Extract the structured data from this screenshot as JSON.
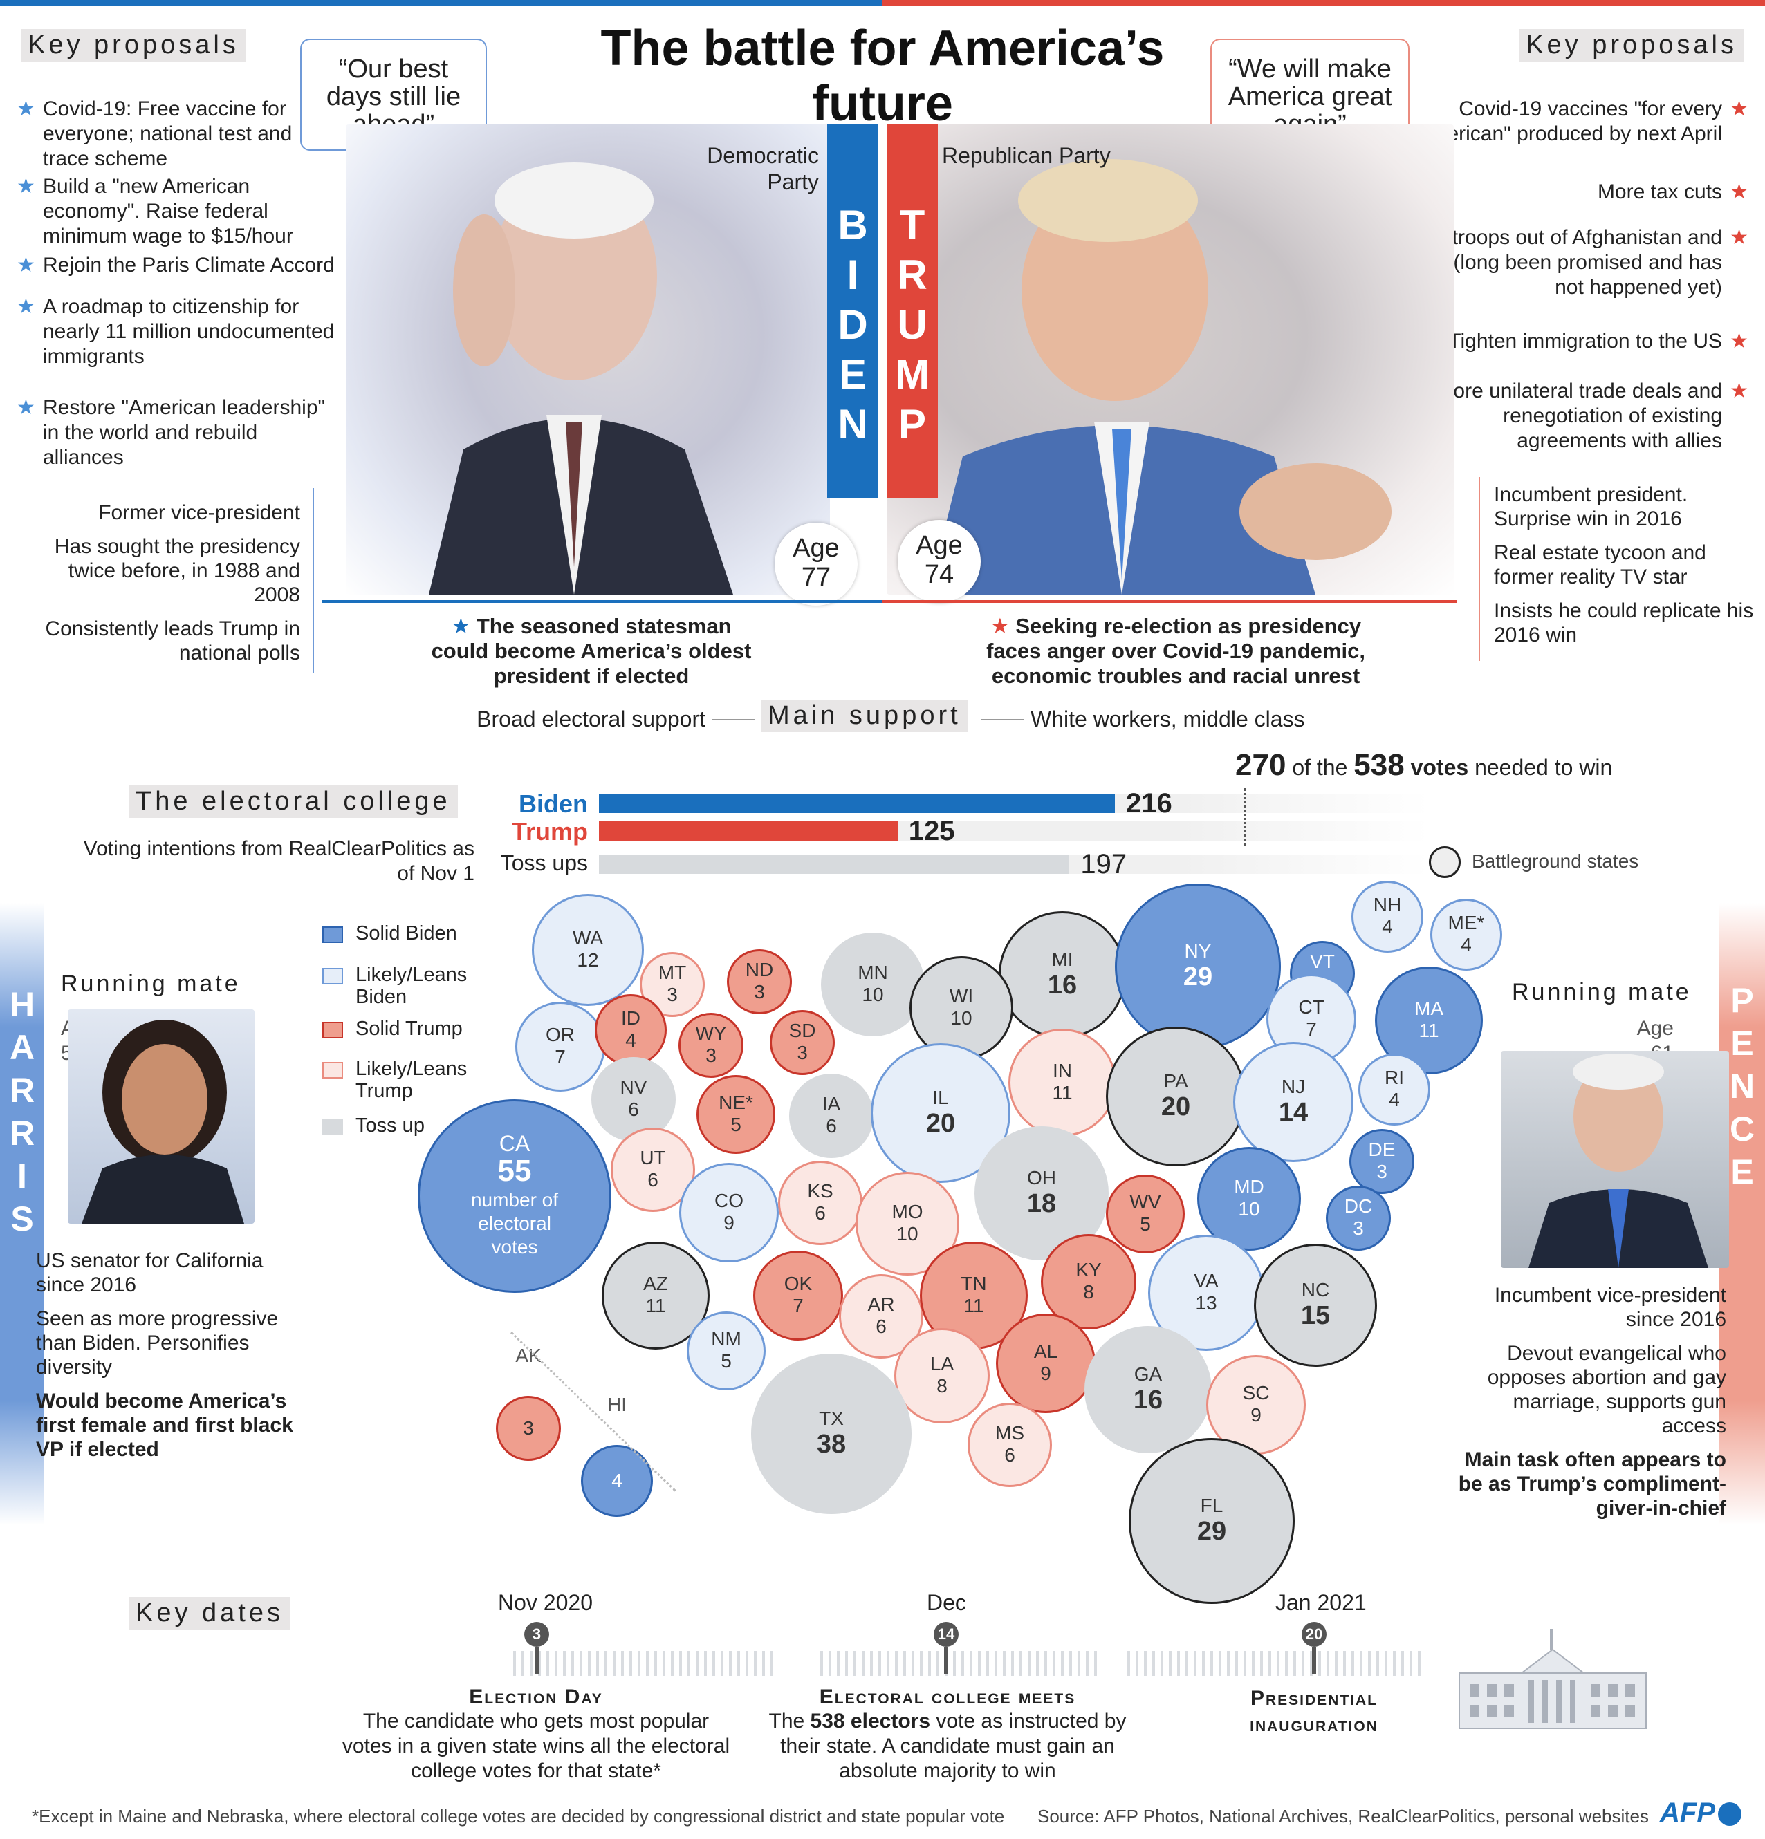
{
  "title": "The battle for America’s future",
  "biden": {
    "proposals_tag": "Key proposals",
    "proposals": [
      "Covid-19: Free vaccine for everyone; national test and trace scheme",
      "Build a \"new American economy\". Raise federal minimum wage to $15/hour",
      "Rejoin the Paris Climate Accord",
      "A roadmap to citizenship for nearly 11 million undocumented immigrants",
      "Restore \"American leadership\" in the world and rebuild alliances"
    ],
    "quote": "“Our best days still lie ahead”",
    "party": "Democratic Party",
    "name_letters": [
      "B",
      "I",
      "D",
      "E",
      "N"
    ],
    "age_label": "Age",
    "age": "77",
    "facts": [
      "Former vice-president",
      "Has sought the presidency twice before, in 1988 and 2008",
      "Consistently leads Trump in national polls"
    ],
    "summary": "The seasoned statesman could become America’s oldest president if elected",
    "support": "Broad electoral support",
    "color": "#1a6fbd"
  },
  "trump": {
    "proposals_tag": "Key proposals",
    "proposals": [
      "Covid-19 vaccines \"for every American\" produced by next April",
      "More tax cuts",
      "Pull troops out of Afghanistan and Iraq (long been promised and has not happened yet)",
      "Tighten immigration to the US",
      "More unilateral trade deals and renegotiation of existing agreements with allies"
    ],
    "quote": "“We will make America great again”",
    "party": "Republican Party",
    "name_letters": [
      "T",
      "R",
      "U",
      "M",
      "P"
    ],
    "age_label": "Age",
    "age": "74",
    "facts": [
      "Incumbent president. Surprise win in 2016",
      "Real estate tycoon and former reality TV star",
      "Insists he could replicate his 2016 win"
    ],
    "summary": "Seeking re-election as presidency faces anger over Covid-19 pandemic, economic troubles and racial unrest",
    "support": "White workers, middle class",
    "color": "#e0463a"
  },
  "main_support_tag": "Main support",
  "electoral": {
    "tag": "The electoral college",
    "subtitle": "Voting intentions from RealClearPolitics as of Nov 1",
    "needed_pre": "270",
    "needed_mid": "of the",
    "needed_total": "538",
    "needed_votes": "votes",
    "needed_post": "needed to win",
    "bars": [
      {
        "label": "Biden",
        "value": 216,
        "color": "#1a6fbd"
      },
      {
        "label": "Trump",
        "value": 125,
        "color": "#e0463a"
      },
      {
        "label": "Toss ups",
        "value": 197,
        "color": "#d7dadd"
      }
    ],
    "battleground_label": "Battleground states",
    "legend": [
      {
        "label": "Solid Biden",
        "cls": "b-solidB"
      },
      {
        "label": "Likely/Leans Biden",
        "cls": "b-leanB"
      },
      {
        "label": "Solid Trump",
        "cls": "b-solidT"
      },
      {
        "label": "Likely/Leans Trump",
        "cls": "b-leanT"
      },
      {
        "label": "Toss up",
        "cls": "b-toss"
      }
    ],
    "ca_note": "number of electoral votes",
    "states": [
      {
        "st": "WA",
        "ev": 12,
        "c": "leanB"
      },
      {
        "st": "MT",
        "ev": 3,
        "c": "leanT"
      },
      {
        "st": "ND",
        "ev": 3,
        "c": "solidT"
      },
      {
        "st": "MN",
        "ev": 10,
        "c": "toss"
      },
      {
        "st": "MI",
        "ev": 16,
        "c": "toss",
        "bg": true
      },
      {
        "st": "NY",
        "ev": 29,
        "c": "solidB"
      },
      {
        "st": "NH",
        "ev": 4,
        "c": "leanB"
      },
      {
        "st": "ME*",
        "ev": 4,
        "c": "leanB"
      },
      {
        "st": "VT",
        "ev": 3,
        "c": "solidB"
      },
      {
        "st": "WI",
        "ev": 10,
        "c": "toss",
        "bg": true
      },
      {
        "st": "OR",
        "ev": 7,
        "c": "leanB"
      },
      {
        "st": "ID",
        "ev": 4,
        "c": "solidT"
      },
      {
        "st": "WY",
        "ev": 3,
        "c": "solidT"
      },
      {
        "st": "SD",
        "ev": 3,
        "c": "solidT"
      },
      {
        "st": "CT",
        "ev": 7,
        "c": "leanB"
      },
      {
        "st": "MA",
        "ev": 11,
        "c": "solidB"
      },
      {
        "st": "NV",
        "ev": 6,
        "c": "toss"
      },
      {
        "st": "NE*",
        "ev": 5,
        "c": "solidT"
      },
      {
        "st": "IA",
        "ev": 6,
        "c": "toss"
      },
      {
        "st": "IL",
        "ev": 20,
        "c": "leanB"
      },
      {
        "st": "IN",
        "ev": 11,
        "c": "leanT"
      },
      {
        "st": "PA",
        "ev": 20,
        "c": "toss",
        "bg": true
      },
      {
        "st": "NJ",
        "ev": 14,
        "c": "leanB"
      },
      {
        "st": "RI",
        "ev": 4,
        "c": "leanB"
      },
      {
        "st": "CA",
        "ev": 55,
        "c": "solidB"
      },
      {
        "st": "UT",
        "ev": 6,
        "c": "leanT"
      },
      {
        "st": "CO",
        "ev": 9,
        "c": "leanB"
      },
      {
        "st": "KS",
        "ev": 6,
        "c": "leanT"
      },
      {
        "st": "MO",
        "ev": 10,
        "c": "leanT"
      },
      {
        "st": "OH",
        "ev": 18,
        "c": "toss"
      },
      {
        "st": "WV",
        "ev": 5,
        "c": "solidT"
      },
      {
        "st": "MD",
        "ev": 10,
        "c": "solidB"
      },
      {
        "st": "DE",
        "ev": 3,
        "c": "solidB"
      },
      {
        "st": "DC",
        "ev": 3,
        "c": "solidB"
      },
      {
        "st": "AZ",
        "ev": 11,
        "c": "toss",
        "bg": true
      },
      {
        "st": "OK",
        "ev": 7,
        "c": "solidT"
      },
      {
        "st": "AR",
        "ev": 6,
        "c": "leanT"
      },
      {
        "st": "TN",
        "ev": 11,
        "c": "solidT"
      },
      {
        "st": "KY",
        "ev": 8,
        "c": "solidT"
      },
      {
        "st": "VA",
        "ev": 13,
        "c": "leanB"
      },
      {
        "st": "NC",
        "ev": 15,
        "c": "toss",
        "bg": true
      },
      {
        "st": "NM",
        "ev": 5,
        "c": "leanB"
      },
      {
        "st": "LA",
        "ev": 8,
        "c": "leanT"
      },
      {
        "st": "AL",
        "ev": 9,
        "c": "solidT"
      },
      {
        "st": "GA",
        "ev": 16,
        "c": "toss"
      },
      {
        "st": "SC",
        "ev": 9,
        "c": "leanT"
      },
      {
        "st": "TX",
        "ev": 38,
        "c": "toss"
      },
      {
        "st": "MS",
        "ev": 6,
        "c": "leanT"
      },
      {
        "st": "FL",
        "ev": 29,
        "c": "toss",
        "bg": true
      },
      {
        "st": "AK",
        "ev": 3,
        "c": "solidT"
      },
      {
        "st": "HI",
        "ev": 4,
        "c": "solidB"
      }
    ]
  },
  "harris": {
    "letters": [
      "H",
      "A",
      "R",
      "R",
      "I",
      "S"
    ],
    "tag": "Running mate",
    "age_label": "Age",
    "age": "56",
    "facts": [
      "US senator for California since 2016",
      "Seen as more progressive than Biden. Personifies diversity"
    ],
    "bold_fact": "Would become America’s first female and first black VP if elected"
  },
  "pence": {
    "letters": [
      "P",
      "E",
      "N",
      "C",
      "E"
    ],
    "tag": "Running mate",
    "age_label": "Age",
    "age": "61",
    "facts": [
      "Incumbent vice-president since 2016",
      "Devout evangelical who opposes abortion and gay marriage, supports gun access"
    ],
    "bold_fact": "Main task often appears to be as Trump’s compliment-giver-in-chief"
  },
  "dates": {
    "tag": "Key dates",
    "months": [
      "Nov 2020",
      "Dec",
      "Jan 2021"
    ],
    "events": [
      {
        "day": "3",
        "title": "Election Day",
        "desc": "The candidate who gets most popular votes in a given state wins all the electoral college votes for that state*"
      },
      {
        "day": "14",
        "title": "Electoral college meets",
        "desc_bold": "538 electors",
        "desc_pre": "The",
        "desc_post": "vote as instructed by their state. A candidate must gain an absolute majority to win"
      },
      {
        "day": "20",
        "title": "Presidential inauguration",
        "desc": ""
      }
    ]
  },
  "footnote": "*Except in Maine and Nebraska, where electoral college votes are decided by congressional district and state popular vote",
  "source": "Source: AFP Photos, National Archives, RealClearPolitics, personal websites",
  "logo": "AFP"
}
